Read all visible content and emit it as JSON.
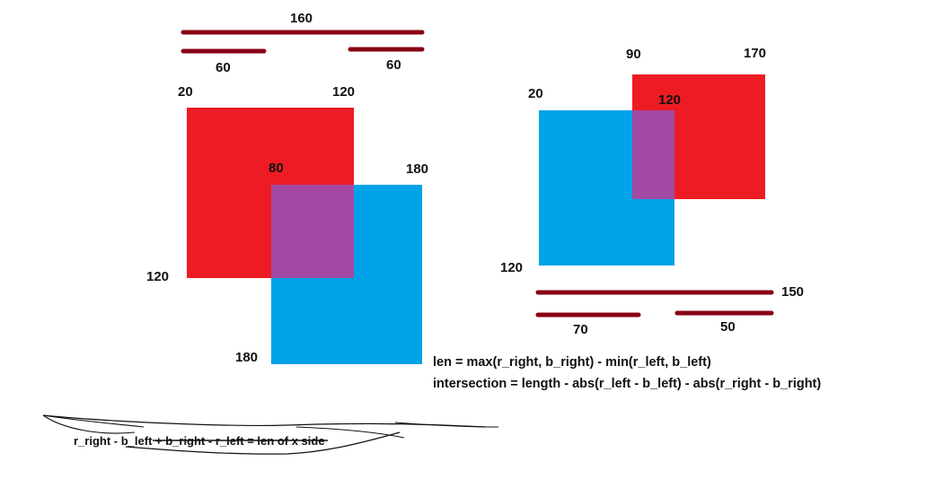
{
  "colors": {
    "red_rect": "#ed1c24",
    "blue_rect": "#00a2e8",
    "overlap": "#a349a4",
    "bar": "#880015",
    "text": "#111111"
  },
  "left_diagram": {
    "top_bar_label": "160",
    "left_bar_label": "60",
    "right_bar_label": "60",
    "red_left_label": "20",
    "red_right_label": "120",
    "red_bottom_label": "120",
    "blue_left_label": "80",
    "blue_right_label": "180",
    "blue_bottom_label": "180"
  },
  "right_diagram": {
    "red_left_label": "90",
    "red_right_label": "170",
    "blue_left_label": "20",
    "blue_right_label": "120",
    "blue_bottom_label": "120",
    "bottom_bar_label": "150",
    "left_bar_label": "70",
    "right_bar_label": "50"
  },
  "formulas": {
    "len": "len = max(r_right, b_right) - min(r_left, b_left)",
    "intersection": "intersection = length - abs(r_left - b_left) - abs(r_right - b_right)"
  },
  "scribbled_note": "r_right - b_left + b_right - r_left = len of x side"
}
